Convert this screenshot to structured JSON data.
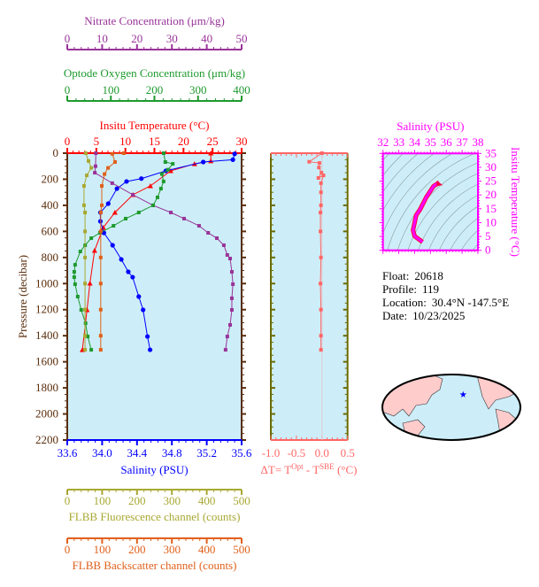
{
  "colors": {
    "background": "#cdeef8",
    "pressure_axis": "#5a2d0c",
    "temperature": "#ff0000",
    "salinity": "#0000ff",
    "nitrate": "#993399",
    "oxygen": "#1e9a2e",
    "fluorescence": "#a8a832",
    "backscatter": "#e0601a",
    "delta_t": "#ff6666",
    "delta_axis": "#6b6b00",
    "ts": "#ff00ff",
    "ts_line": "#ff0040",
    "land": "#ffcccc",
    "float_marker": "#0000ff"
  },
  "info": {
    "float_label": "Float:",
    "float_value": "20618",
    "profile_label": "Profile:",
    "profile_value": "119",
    "location_label": "Location:",
    "location_value": "30.4°N  -147.5°E",
    "date_label": "Date:",
    "date_value": "10/23/2025"
  },
  "chart_data": [
    {
      "type": "line",
      "ylabel": "Pressure (decibar)",
      "ylim": [
        2200,
        0
      ],
      "yticks": [
        0,
        200,
        400,
        600,
        800,
        1000,
        1200,
        1400,
        1600,
        1800,
        2000,
        2200
      ],
      "grid": false,
      "axes": {
        "nitrate": {
          "label": "Nitrate Concentration (μm/kg)",
          "lim": [
            0,
            50
          ],
          "ticks": [
            0,
            10,
            20,
            30,
            40,
            50
          ]
        },
        "oxygen": {
          "label": "Optode Oxygen Concentration (μm/kg)",
          "lim": [
            0,
            400
          ],
          "ticks": [
            0,
            100,
            200,
            300,
            400
          ]
        },
        "temperature": {
          "label": "Insitu Temperature (°C)",
          "lim": [
            0,
            30
          ],
          "ticks": [
            0,
            5,
            10,
            15,
            20,
            25,
            30
          ]
        },
        "salinity": {
          "label": "Salinity (PSU)",
          "lim": [
            33.6,
            35.6
          ],
          "ticks": [
            "33.6",
            "34.0",
            "34.4",
            "34.8",
            "35.2",
            "35.6"
          ]
        },
        "fluorescence": {
          "label": "FLBB Fluorescence channel (counts)",
          "lim": [
            0,
            500
          ],
          "ticks": [
            0,
            100,
            200,
            300,
            400,
            500
          ]
        },
        "backscatter": {
          "label": "FLBB Backscatter channel (counts)",
          "lim": [
            0,
            500
          ],
          "ticks": [
            0,
            100,
            200,
            300,
            400,
            500
          ]
        }
      },
      "series": [
        {
          "axis": "temperature",
          "marker": "triangle",
          "points": [
            [
              24.7,
              0
            ],
            [
              24.7,
              60
            ],
            [
              21.9,
              82
            ],
            [
              17.8,
              136
            ],
            [
              14.3,
              251
            ],
            [
              11.3,
              319
            ],
            [
              8.2,
              455
            ],
            [
              6.2,
              570
            ],
            [
              4.7,
              747
            ],
            [
              3.9,
              998
            ],
            [
              3.4,
              1202
            ],
            [
              2.6,
              1508
            ]
          ]
        },
        {
          "axis": "salinity",
          "marker": "circle",
          "points": [
            [
              35.52,
              5
            ],
            [
              35.5,
              50
            ],
            [
              35.16,
              68
            ],
            [
              34.73,
              136
            ],
            [
              34.45,
              195
            ],
            [
              34.28,
              217
            ],
            [
              34.17,
              272
            ],
            [
              34.07,
              387
            ],
            [
              33.98,
              455
            ],
            [
              33.98,
              523
            ],
            [
              34.02,
              611
            ],
            [
              34.12,
              706
            ],
            [
              34.22,
              815
            ],
            [
              34.3,
              910
            ],
            [
              34.35,
              951
            ],
            [
              34.42,
              1100
            ],
            [
              34.47,
              1202
            ],
            [
              34.52,
              1406
            ],
            [
              34.55,
              1508
            ]
          ]
        },
        {
          "axis": "nitrate",
          "marker": "square",
          "points": [
            [
              8.2,
              0
            ],
            [
              8.1,
              100
            ],
            [
              7.9,
              150
            ],
            [
              12.9,
              230
            ],
            [
              18.8,
              319
            ],
            [
              24.6,
              400
            ],
            [
              29.7,
              455
            ],
            [
              33.5,
              502
            ],
            [
              37.8,
              557
            ],
            [
              40.4,
              611
            ],
            [
              42.9,
              652
            ],
            [
              44.9,
              706
            ],
            [
              45.9,
              781
            ],
            [
              46.7,
              808
            ],
            [
              47.2,
              910
            ],
            [
              47.5,
              1005
            ],
            [
              47.2,
              1113
            ],
            [
              47.2,
              1202
            ],
            [
              46.7,
              1317
            ],
            [
              45.9,
              1406
            ],
            [
              45.4,
              1508
            ]
          ]
        },
        {
          "axis": "oxygen",
          "marker": "square",
          "points": [
            [
              221,
              0
            ],
            [
              225,
              68
            ],
            [
              242,
              82
            ],
            [
              231,
              127
            ],
            [
              217,
              160
            ],
            [
              221,
              217
            ],
            [
              215,
              272
            ],
            [
              207,
              339
            ],
            [
              197,
              400
            ],
            [
              164,
              455
            ],
            [
              134,
              502
            ],
            [
              106,
              557
            ],
            [
              75,
              611
            ],
            [
              55,
              652
            ],
            [
              41,
              706
            ],
            [
              30,
              754
            ],
            [
              18,
              856
            ],
            [
              16,
              910
            ],
            [
              16,
              951
            ],
            [
              18,
              1005
            ],
            [
              24,
              1100
            ],
            [
              32,
              1202
            ],
            [
              42,
              1304
            ],
            [
              47,
              1406
            ],
            [
              55,
              1508
            ]
          ]
        },
        {
          "axis": "fluorescence",
          "marker": "square",
          "points": [
            [
              53,
              0
            ],
            [
              61,
              60
            ],
            [
              69,
              113
            ],
            [
              56,
              170
            ],
            [
              48,
              251
            ],
            [
              48,
              400
            ],
            [
              51,
              455
            ],
            [
              51,
              600
            ],
            [
              51,
              800
            ],
            [
              51,
              1000
            ],
            [
              51,
              1200
            ],
            [
              51,
              1400
            ],
            [
              51,
              1508
            ]
          ]
        },
        {
          "axis": "backscatter",
          "marker": "square",
          "points": [
            [
              162,
              0
            ],
            [
              129,
              5
            ],
            [
              137,
              68
            ],
            [
              117,
              113
            ],
            [
              107,
              160
            ],
            [
              99,
              251
            ],
            [
              99,
              400
            ],
            [
              96,
              455
            ],
            [
              96,
              600
            ],
            [
              96,
              800
            ],
            [
              96,
              1000
            ],
            [
              96,
              1200
            ],
            [
              96,
              1400
            ],
            [
              96,
              1508
            ]
          ]
        }
      ]
    },
    {
      "type": "line",
      "xlabel_parts": [
        "ΔT= T",
        "Opt",
        " - T",
        "SBE",
        " (°C)"
      ],
      "xlim": [
        -1.0,
        0.5
      ],
      "xticks": [
        "-1.0",
        "-0.5",
        "0.0",
        "0.5"
      ],
      "ylim": [
        2200,
        0
      ],
      "points": [
        [
          0,
          0
        ],
        [
          -0.25,
          66
        ],
        [
          -0.05,
          75
        ],
        [
          -0.06,
          110
        ],
        [
          -0.01,
          150
        ],
        [
          -0.07,
          190
        ],
        [
          0.03,
          170
        ],
        [
          -0.02,
          230
        ],
        [
          -0.02,
          300
        ],
        [
          -0.02,
          400
        ],
        [
          -0.03,
          455
        ],
        [
          -0.03,
          600
        ],
        [
          -0.02,
          800
        ],
        [
          -0.03,
          1000
        ],
        [
          -0.02,
          1200
        ],
        [
          -0.02,
          1400
        ],
        [
          -0.02,
          1508
        ]
      ]
    },
    {
      "type": "line",
      "xlabel": "Salinity (PSU)",
      "ylabel": "Insitu Temperature (°C)",
      "xlim": [
        32,
        38
      ],
      "ylim": [
        0,
        35
      ],
      "xticks": [
        32,
        33,
        34,
        35,
        36,
        37,
        38
      ],
      "yticks": [
        0,
        5,
        10,
        15,
        20,
        25,
        30,
        35
      ],
      "points": [
        [
          35.56,
          24.5
        ],
        [
          35.2,
          23.2
        ],
        [
          34.73,
          19.1
        ],
        [
          34.35,
          14.8
        ],
        [
          34.1,
          12.7
        ],
        [
          33.9,
          7.3
        ],
        [
          34.0,
          5.1
        ],
        [
          34.5,
          3.0
        ]
      ]
    }
  ]
}
